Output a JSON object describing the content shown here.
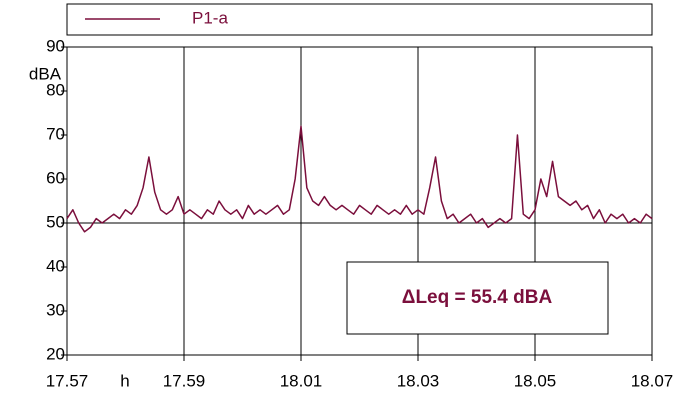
{
  "chart_data": {
    "type": "line",
    "legend": "top",
    "annotation": "ΔLeq = 55.4 dBA",
    "ylabel": "dBA",
    "xlabel": "h",
    "x": [
      1077,
      1077.1,
      1077.2,
      1077.3,
      1077.4,
      1077.5,
      1077.6,
      1077.7,
      1077.8,
      1077.9,
      1078,
      1078.1,
      1078.2,
      1078.3,
      1078.4,
      1078.5,
      1078.6,
      1078.7,
      1078.8,
      1078.9,
      1079,
      1079.1,
      1079.2,
      1079.3,
      1079.4,
      1079.5,
      1079.6,
      1079.7,
      1079.8,
      1079.9,
      1080,
      1080.1,
      1080.2,
      1080.3,
      1080.4,
      1080.5,
      1080.6,
      1080.7,
      1080.8,
      1080.9,
      1081,
      1081.1,
      1081.2,
      1081.3,
      1081.4,
      1081.5,
      1081.6,
      1081.7,
      1081.8,
      1081.9,
      1082,
      1082.1,
      1082.2,
      1082.3,
      1082.4,
      1082.5,
      1082.6,
      1082.7,
      1082.8,
      1082.9,
      1083,
      1083.1,
      1083.2,
      1083.3,
      1083.4,
      1083.5,
      1083.6,
      1083.7,
      1083.8,
      1083.9,
      1084,
      1084.1,
      1084.2,
      1084.3,
      1084.4,
      1084.5,
      1084.6,
      1084.7,
      1084.8,
      1084.9,
      1085,
      1085.1,
      1085.2,
      1085.3,
      1085.4,
      1085.5,
      1085.6,
      1085.7,
      1085.8,
      1085.9,
      1086,
      1086.1,
      1086.2,
      1086.3,
      1086.4,
      1086.5,
      1086.6,
      1086.7,
      1086.8,
      1086.9,
      1087
    ],
    "series": [
      {
        "name": "P1-a",
        "color": "#7b0f3c",
        "values": [
          51,
          53,
          50,
          48,
          49,
          51,
          50,
          51,
          52,
          51,
          53,
          52,
          54,
          58,
          65,
          57,
          53,
          52,
          53,
          56,
          52,
          53,
          52,
          51,
          53,
          52,
          55,
          53,
          52,
          53,
          51,
          54,
          52,
          53,
          52,
          53,
          54,
          52,
          53,
          60,
          72,
          58,
          55,
          54,
          56,
          54,
          53,
          54,
          53,
          52,
          54,
          53,
          52,
          54,
          53,
          52,
          53,
          52,
          54,
          52,
          53,
          52,
          58,
          65,
          55,
          51,
          52,
          50,
          51,
          52,
          50,
          51,
          49,
          50,
          51,
          50,
          51,
          70,
          52,
          51,
          53,
          60,
          56,
          64,
          56,
          55,
          54,
          55,
          53,
          54,
          51,
          53,
          50,
          52,
          51,
          52,
          50,
          51,
          50,
          52,
          51
        ]
      }
    ],
    "xlim": [
      1077,
      1087
    ],
    "xticks": [
      {
        "value": 1077,
        "label": "17.57"
      },
      {
        "value": 1079,
        "label": "17.59"
      },
      {
        "value": 1081,
        "label": "18.01"
      },
      {
        "value": 1083,
        "label": "18.03"
      },
      {
        "value": 1085,
        "label": "18.05"
      },
      {
        "value": 1087,
        "label": "18.07"
      }
    ],
    "ylim": [
      20,
      90
    ],
    "yticks": [
      20,
      30,
      40,
      50,
      60,
      70,
      80,
      90
    ],
    "xgrid": true,
    "hgrid": [
      50
    ]
  }
}
